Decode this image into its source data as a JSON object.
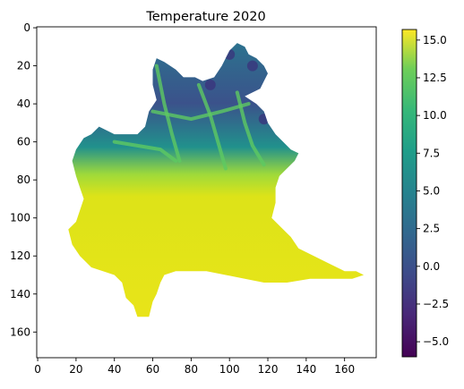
{
  "chart_data": {
    "type": "heatmap",
    "title": "Temperature 2020",
    "xlim": [
      -0.5,
      176.5
    ],
    "ylim": [
      173.5,
      -0.5
    ],
    "x_ticks": [
      0,
      20,
      40,
      60,
      80,
      100,
      120,
      140,
      160
    ],
    "y_ticks": [
      0,
      20,
      40,
      60,
      80,
      100,
      120,
      140,
      160
    ],
    "colorbar": {
      "colormap": "viridis",
      "range": [
        -6,
        15.7
      ],
      "ticks": [
        -5.0,
        -2.5,
        0.0,
        2.5,
        5.0,
        7.5,
        10.0,
        12.5,
        15.0
      ],
      "tick_labels": [
        "−5.0",
        "−2.5",
        "0.0",
        "2.5",
        "5.0",
        "7.5",
        "10.0",
        "12.5",
        "15.0"
      ]
    },
    "region_outline": [
      [
        104,
        8
      ],
      [
        108,
        10
      ],
      [
        110,
        14
      ],
      [
        114,
        16
      ],
      [
        118,
        20
      ],
      [
        120,
        24
      ],
      [
        118,
        28
      ],
      [
        116,
        32
      ],
      [
        112,
        34
      ],
      [
        108,
        36
      ],
      [
        114,
        40
      ],
      [
        118,
        44
      ],
      [
        120,
        50
      ],
      [
        124,
        56
      ],
      [
        128,
        60
      ],
      [
        132,
        64
      ],
      [
        136,
        66
      ],
      [
        134,
        70
      ],
      [
        130,
        74
      ],
      [
        126,
        78
      ],
      [
        124,
        84
      ],
      [
        124,
        92
      ],
      [
        122,
        100
      ],
      [
        128,
        106
      ],
      [
        132,
        110
      ],
      [
        136,
        116
      ],
      [
        144,
        120
      ],
      [
        152,
        124
      ],
      [
        160,
        128
      ],
      [
        166,
        128
      ],
      [
        170,
        130
      ],
      [
        164,
        132
      ],
      [
        154,
        132
      ],
      [
        142,
        132
      ],
      [
        130,
        134
      ],
      [
        118,
        134
      ],
      [
        108,
        132
      ],
      [
        98,
        130
      ],
      [
        88,
        128
      ],
      [
        78,
        128
      ],
      [
        72,
        128
      ],
      [
        66,
        130
      ],
      [
        64,
        134
      ],
      [
        62,
        140
      ],
      [
        60,
        144
      ],
      [
        58,
        152
      ],
      [
        52,
        152
      ],
      [
        50,
        146
      ],
      [
        46,
        142
      ],
      [
        44,
        134
      ],
      [
        40,
        130
      ],
      [
        34,
        128
      ],
      [
        28,
        126
      ],
      [
        22,
        120
      ],
      [
        18,
        114
      ],
      [
        16,
        106
      ],
      [
        20,
        102
      ],
      [
        22,
        96
      ],
      [
        24,
        90
      ],
      [
        22,
        84
      ],
      [
        20,
        78
      ],
      [
        18,
        70
      ],
      [
        20,
        64
      ],
      [
        24,
        58
      ],
      [
        28,
        56
      ],
      [
        32,
        52
      ],
      [
        36,
        54
      ],
      [
        40,
        56
      ],
      [
        48,
        56
      ],
      [
        52,
        56
      ],
      [
        56,
        52
      ],
      [
        58,
        44
      ],
      [
        62,
        38
      ],
      [
        60,
        30
      ],
      [
        60,
        22
      ],
      [
        62,
        16
      ],
      [
        66,
        18
      ],
      [
        72,
        22
      ],
      [
        76,
        26
      ],
      [
        82,
        26
      ],
      [
        86,
        28
      ],
      [
        92,
        26
      ],
      [
        96,
        20
      ],
      [
        100,
        12
      ]
    ],
    "field_summary": {
      "lowland_temp": 14.5,
      "alpine_min": -5.8,
      "max": 15.7
    }
  }
}
